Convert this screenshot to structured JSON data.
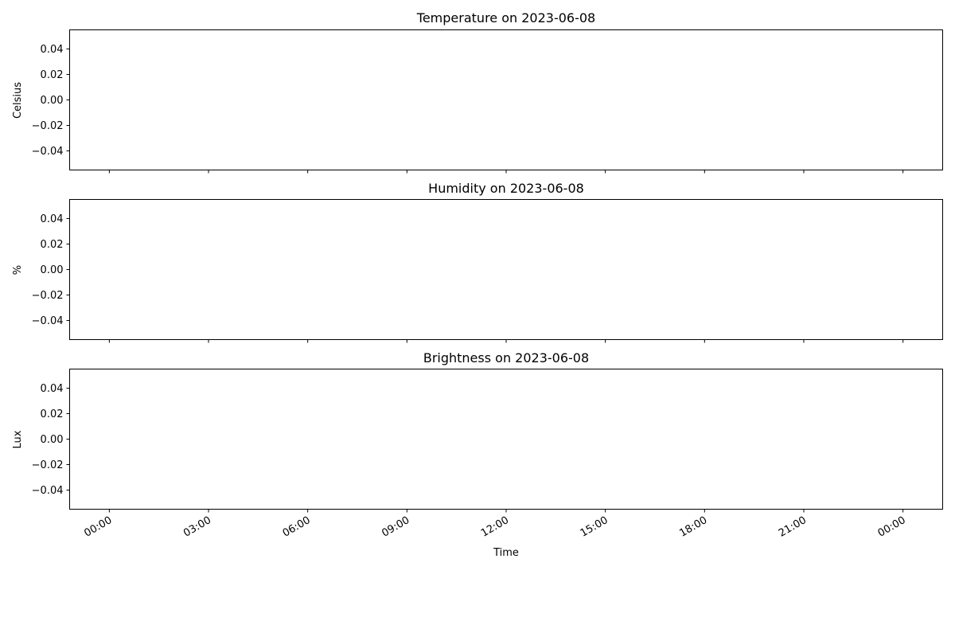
{
  "chart_data": [
    {
      "type": "line",
      "title": "Temperature on 2023-06-08",
      "ylabel": "Celsius",
      "xlabel": "",
      "series": [],
      "ylim": [
        -0.055,
        0.055
      ],
      "yticks": [
        "0.04",
        "0.02",
        "0.00",
        "−0.02",
        "−0.04"
      ],
      "ytick_values": [
        0.04,
        0.02,
        0.0,
        -0.02,
        -0.04
      ],
      "xticks": [],
      "grid": false
    },
    {
      "type": "line",
      "title": "Humidity on 2023-06-08",
      "ylabel": "%",
      "xlabel": "",
      "series": [],
      "ylim": [
        -0.055,
        0.055
      ],
      "yticks": [
        "0.04",
        "0.02",
        "0.00",
        "−0.02",
        "−0.04"
      ],
      "ytick_values": [
        0.04,
        0.02,
        0.0,
        -0.02,
        -0.04
      ],
      "xticks": [],
      "grid": false
    },
    {
      "type": "line",
      "title": "Brightness on 2023-06-08",
      "ylabel": "Lux",
      "xlabel": "Time",
      "series": [],
      "ylim": [
        -0.055,
        0.055
      ],
      "yticks": [
        "0.04",
        "0.02",
        "0.00",
        "−0.02",
        "−0.04"
      ],
      "ytick_values": [
        0.04,
        0.02,
        0.0,
        -0.02,
        -0.04
      ],
      "xticks": [
        "00:00",
        "03:00",
        "06:00",
        "09:00",
        "12:00",
        "15:00",
        "18:00",
        "21:00",
        "00:00"
      ],
      "grid": false
    }
  ],
  "shared_x": {
    "tick_times": [
      "2023-06-08 00:00",
      "2023-06-08 03:00",
      "2023-06-08 06:00",
      "2023-06-08 09:00",
      "2023-06-08 12:00",
      "2023-06-08 15:00",
      "2023-06-08 18:00",
      "2023-06-08 21:00",
      "2023-06-09 00:00"
    ],
    "xlim_hours": [
      -1.2,
      25.2
    ]
  }
}
